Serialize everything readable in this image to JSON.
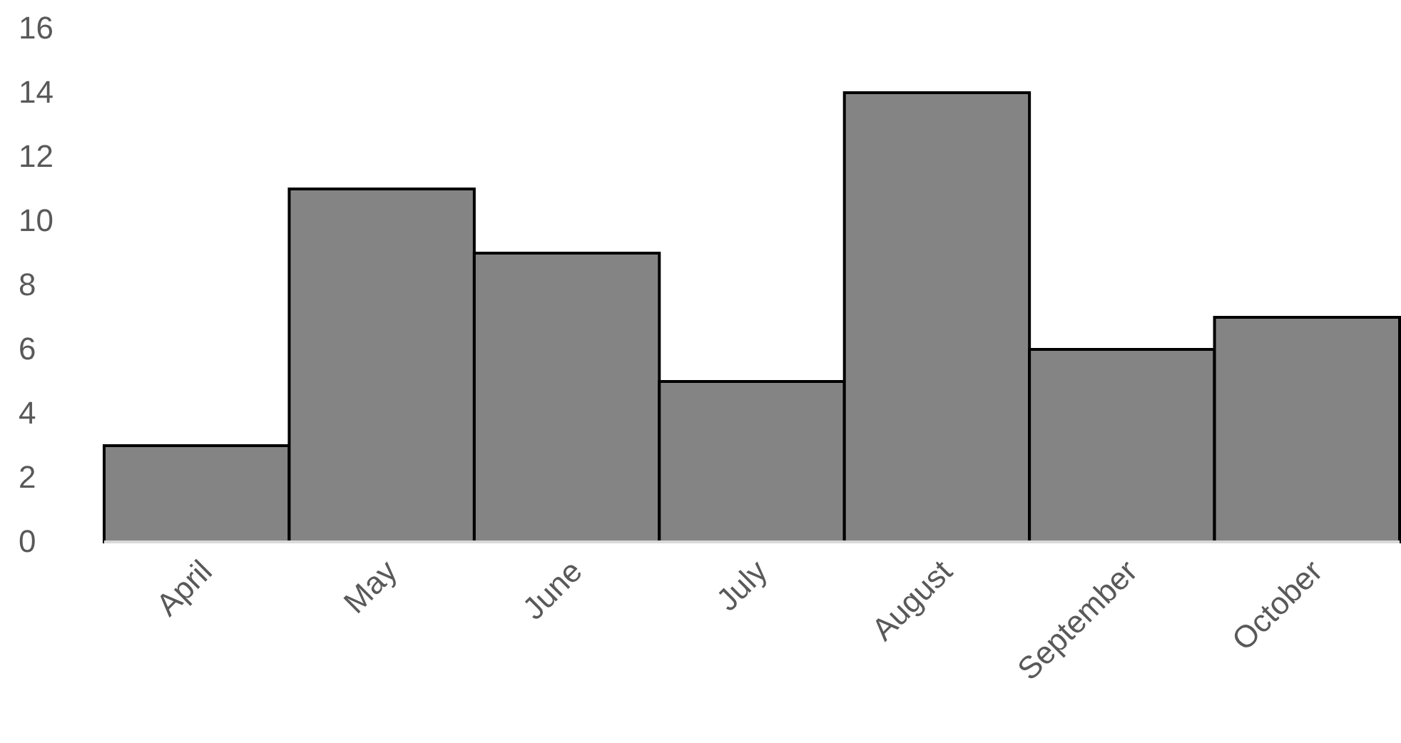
{
  "chart_data": {
    "type": "bar",
    "categories": [
      "April",
      "May",
      "June",
      "July",
      "August",
      "September",
      "October"
    ],
    "values": [
      3,
      11,
      9,
      5,
      14,
      6,
      7
    ],
    "color": "#848484",
    "ylim": [
      0,
      16
    ],
    "yticks": [
      0,
      2,
      4,
      6,
      8,
      10,
      12,
      14,
      16
    ],
    "grid": false
  }
}
